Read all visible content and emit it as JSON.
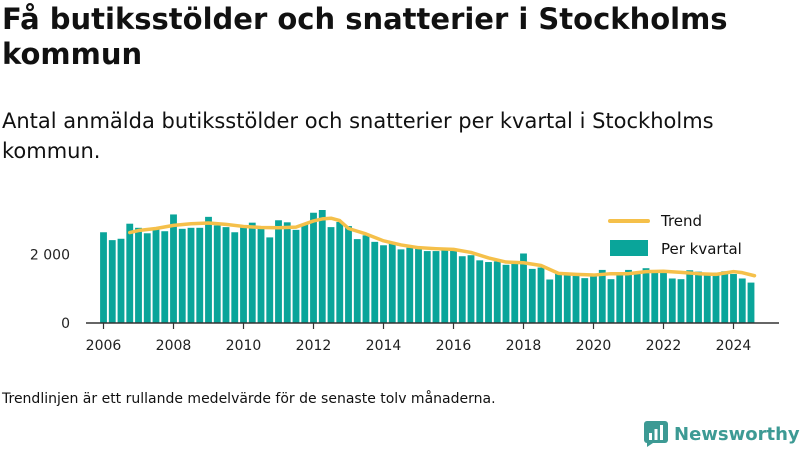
{
  "title": "Få butiksstölder och snatterier i Stockholms kommun",
  "subtitle": "Antal anmälda butiksstölder och snatterier per kvartal i Stockholms kommun.",
  "footnote": "Trendlinjen är ett rullande medelvärde för de senaste tolv månaderna.",
  "brand": {
    "name": "Newsworthy",
    "icon": "newsworthy-logo-icon",
    "color": "#3d9a94"
  },
  "colors": {
    "bars": "#0aa59a",
    "trend": "#f5c04a",
    "axis": "#333333"
  },
  "chart_data": {
    "type": "bar",
    "xlim": [
      2005.5,
      2025.3
    ],
    "ylim": [
      0,
      3300
    ],
    "yticks": [
      0,
      2000
    ],
    "ytick_labels": [
      "0",
      "2 000"
    ],
    "xticks": [
      2006,
      2008,
      2010,
      2012,
      2014,
      2016,
      2018,
      2020,
      2022,
      2024
    ],
    "xtick_labels": [
      "2006",
      "2008",
      "2010",
      "2012",
      "2014",
      "2016",
      "2018",
      "2020",
      "2022",
      "2024"
    ],
    "legend_position": "top-right",
    "series": [
      {
        "name": "Per kvartal",
        "kind": "bar",
        "x": [
          2006.0,
          2006.25,
          2006.5,
          2006.75,
          2007.0,
          2007.25,
          2007.5,
          2007.75,
          2008.0,
          2008.25,
          2008.5,
          2008.75,
          2009.0,
          2009.25,
          2009.5,
          2009.75,
          2010.0,
          2010.25,
          2010.5,
          2010.75,
          2011.0,
          2011.25,
          2011.5,
          2011.75,
          2012.0,
          2012.25,
          2012.5,
          2012.75,
          2013.0,
          2013.25,
          2013.5,
          2013.75,
          2014.0,
          2014.25,
          2014.5,
          2014.75,
          2015.0,
          2015.25,
          2015.5,
          2015.75,
          2016.0,
          2016.25,
          2016.5,
          2016.75,
          2017.0,
          2017.25,
          2017.5,
          2017.75,
          2018.0,
          2018.25,
          2018.5,
          2018.75,
          2019.0,
          2019.25,
          2019.5,
          2019.75,
          2020.0,
          2020.25,
          2020.5,
          2020.75,
          2021.0,
          2021.25,
          2021.5,
          2021.75,
          2022.0,
          2022.25,
          2022.5,
          2022.75,
          2023.0,
          2023.25,
          2023.5,
          2023.75,
          2024.0,
          2024.25,
          2024.5
        ],
        "values": [
          2650,
          2420,
          2460,
          2900,
          2780,
          2620,
          2750,
          2680,
          3170,
          2750,
          2780,
          2780,
          3100,
          2850,
          2800,
          2650,
          2860,
          2930,
          2820,
          2500,
          3000,
          2940,
          2720,
          2900,
          3220,
          3300,
          2800,
          2950,
          2830,
          2450,
          2560,
          2370,
          2270,
          2340,
          2150,
          2200,
          2180,
          2100,
          2100,
          2150,
          2110,
          1950,
          1980,
          1830,
          1780,
          1800,
          1700,
          1750,
          2030,
          1580,
          1620,
          1270,
          1460,
          1430,
          1420,
          1310,
          1400,
          1550,
          1280,
          1420,
          1550,
          1460,
          1600,
          1470,
          1500,
          1300,
          1280,
          1540,
          1500,
          1440,
          1470,
          1510,
          1430,
          1300,
          1180
        ]
      },
      {
        "name": "Trend",
        "kind": "line",
        "x": [
          2006.75,
          2007.0,
          2007.5,
          2008.0,
          2008.5,
          2009.0,
          2009.5,
          2010.0,
          2010.5,
          2011.0,
          2011.5,
          2012.0,
          2012.25,
          2012.5,
          2012.75,
          2013.0,
          2013.5,
          2014.0,
          2014.5,
          2015.0,
          2015.5,
          2016.0,
          2016.5,
          2017.0,
          2017.5,
          2018.0,
          2018.5,
          2019.0,
          2019.5,
          2020.0,
          2020.5,
          2021.0,
          2021.5,
          2022.0,
          2022.5,
          2023.0,
          2023.5,
          2024.0,
          2024.25,
          2024.6
        ],
        "values": [
          2640,
          2700,
          2760,
          2850,
          2900,
          2920,
          2880,
          2820,
          2790,
          2780,
          2800,
          2980,
          3040,
          3060,
          2990,
          2760,
          2600,
          2400,
          2280,
          2200,
          2170,
          2150,
          2060,
          1900,
          1780,
          1760,
          1680,
          1450,
          1420,
          1400,
          1440,
          1440,
          1500,
          1510,
          1480,
          1440,
          1420,
          1500,
          1470,
          1380
        ]
      }
    ]
  }
}
